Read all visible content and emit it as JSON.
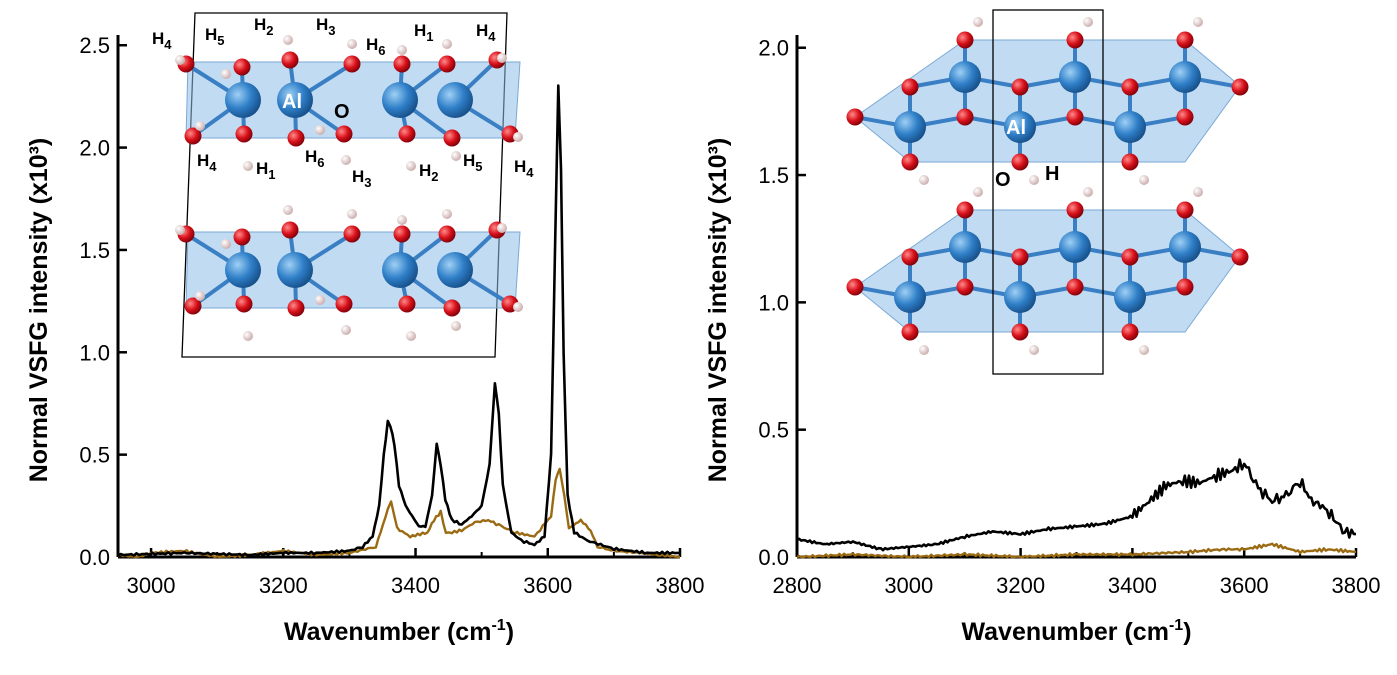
{
  "colors": {
    "series_black": "#000000",
    "series_gold": "#9a6b12",
    "atom_o": "#d8101a",
    "atom_al": "#2f7fc8",
    "atom_h": "#e8d6d6",
    "octahedron": "#8ec0e8"
  },
  "chart_data": [
    {
      "type": "line",
      "panel": "left",
      "xlabel": "Wavenumber (cm-1)",
      "ylabel": "Normal VSFG intensity (x10³)",
      "xlim": [
        2950,
        3800
      ],
      "ylim": [
        0,
        2.55
      ],
      "x_ticks": [
        "3000",
        "3200",
        "3400",
        "3600",
        "3800"
      ],
      "y_ticks": [
        "0.0",
        "0.5",
        "1.0",
        "1.5",
        "2.0",
        "2.5"
      ],
      "series": [
        {
          "name": "black",
          "points": [
            [
              2950,
              0.01
            ],
            [
              3050,
              0.02
            ],
            [
              3150,
              0.01
            ],
            [
              3200,
              0.02
            ],
            [
              3250,
              0.02
            ],
            [
              3300,
              0.03
            ],
            [
              3320,
              0.05
            ],
            [
              3335,
              0.1
            ],
            [
              3345,
              0.25
            ],
            [
              3352,
              0.5
            ],
            [
              3358,
              0.66
            ],
            [
              3362,
              0.64
            ],
            [
              3368,
              0.55
            ],
            [
              3375,
              0.35
            ],
            [
              3385,
              0.25
            ],
            [
              3395,
              0.2
            ],
            [
              3405,
              0.15
            ],
            [
              3415,
              0.15
            ],
            [
              3425,
              0.3
            ],
            [
              3432,
              0.55
            ],
            [
              3438,
              0.45
            ],
            [
              3445,
              0.28
            ],
            [
              3455,
              0.18
            ],
            [
              3470,
              0.16
            ],
            [
              3485,
              0.2
            ],
            [
              3500,
              0.25
            ],
            [
              3512,
              0.45
            ],
            [
              3520,
              0.85
            ],
            [
              3526,
              0.7
            ],
            [
              3532,
              0.35
            ],
            [
              3545,
              0.12
            ],
            [
              3560,
              0.08
            ],
            [
              3580,
              0.06
            ],
            [
              3595,
              0.1
            ],
            [
              3605,
              0.5
            ],
            [
              3611,
              1.5
            ],
            [
              3616,
              2.3
            ],
            [
              3620,
              1.9
            ],
            [
              3624,
              1.0
            ],
            [
              3630,
              0.3
            ],
            [
              3640,
              0.12
            ],
            [
              3660,
              0.08
            ],
            [
              3700,
              0.04
            ],
            [
              3750,
              0.02
            ],
            [
              3800,
              0.02
            ]
          ]
        },
        {
          "name": "gold",
          "points": [
            [
              2950,
              0.01
            ],
            [
              2980,
              0.0
            ],
            [
              3000,
              0.02
            ],
            [
              3050,
              0.03
            ],
            [
              3100,
              0.0
            ],
            [
              3150,
              0.01
            ],
            [
              3200,
              0.03
            ],
            [
              3250,
              0.01
            ],
            [
              3300,
              0.02
            ],
            [
              3340,
              0.05
            ],
            [
              3358,
              0.23
            ],
            [
              3363,
              0.27
            ],
            [
              3372,
              0.14
            ],
            [
              3392,
              0.1
            ],
            [
              3418,
              0.12
            ],
            [
              3428,
              0.18
            ],
            [
              3438,
              0.22
            ],
            [
              3446,
              0.12
            ],
            [
              3455,
              0.12
            ],
            [
              3470,
              0.13
            ],
            [
              3490,
              0.17
            ],
            [
              3510,
              0.18
            ],
            [
              3530,
              0.15
            ],
            [
              3550,
              0.12
            ],
            [
              3580,
              0.1
            ],
            [
              3605,
              0.2
            ],
            [
              3612,
              0.38
            ],
            [
              3618,
              0.43
            ],
            [
              3625,
              0.3
            ],
            [
              3632,
              0.14
            ],
            [
              3650,
              0.18
            ],
            [
              3665,
              0.13
            ],
            [
              3675,
              0.05
            ],
            [
              3700,
              0.03
            ],
            [
              3740,
              0.02
            ],
            [
              3770,
              0.01
            ],
            [
              3800,
              0.0
            ]
          ]
        }
      ]
    },
    {
      "type": "line",
      "panel": "right",
      "xlabel": "Wavenumber (cm-1)",
      "ylabel": "Normal VSFG intensity (x10³)",
      "xlim": [
        2800,
        3800
      ],
      "ylim": [
        0,
        2.05
      ],
      "x_ticks": [
        "2800",
        "3000",
        "3200",
        "3400",
        "3600",
        "3800"
      ],
      "y_ticks": [
        "0.0",
        "0.5",
        "1.0",
        "1.5",
        "2.0"
      ],
      "series": [
        {
          "name": "black",
          "points": [
            [
              2800,
              0.07
            ],
            [
              2850,
              0.05
            ],
            [
              2900,
              0.06
            ],
            [
              2950,
              0.03
            ],
            [
              3000,
              0.04
            ],
            [
              3050,
              0.05
            ],
            [
              3100,
              0.08
            ],
            [
              3150,
              0.1
            ],
            [
              3200,
              0.09
            ],
            [
              3250,
              0.11
            ],
            [
              3300,
              0.12
            ],
            [
              3350,
              0.13
            ],
            [
              3400,
              0.16
            ],
            [
              3430,
              0.22
            ],
            [
              3460,
              0.28
            ],
            [
              3490,
              0.3
            ],
            [
              3520,
              0.29
            ],
            [
              3550,
              0.32
            ],
            [
              3580,
              0.34
            ],
            [
              3600,
              0.37
            ],
            [
              3625,
              0.27
            ],
            [
              3650,
              0.22
            ],
            [
              3675,
              0.24
            ],
            [
              3700,
              0.3
            ],
            [
              3720,
              0.22
            ],
            [
              3740,
              0.2
            ],
            [
              3760,
              0.15
            ],
            [
              3780,
              0.1
            ],
            [
              3800,
              0.09
            ]
          ]
        },
        {
          "name": "gold",
          "points": [
            [
              2800,
              0.0
            ],
            [
              2900,
              0.01
            ],
            [
              3000,
              0.0
            ],
            [
              3100,
              0.01
            ],
            [
              3200,
              0.0
            ],
            [
              3300,
              0.01
            ],
            [
              3400,
              0.01
            ],
            [
              3500,
              0.02
            ],
            [
              3560,
              0.03
            ],
            [
              3600,
              0.03
            ],
            [
              3650,
              0.05
            ],
            [
              3700,
              0.02
            ],
            [
              3750,
              0.03
            ],
            [
              3800,
              0.02
            ]
          ]
        }
      ]
    }
  ],
  "insets": {
    "left": {
      "top_labels": [
        "H4",
        "H5",
        "H2",
        "H3",
        "H6",
        "H1",
        "H4"
      ],
      "bottom_labels": [
        "H4",
        "H1",
        "H6",
        "H3",
        "H2",
        "H5",
        "H4"
      ],
      "al_label": "Al",
      "o_label": "O"
    },
    "right": {
      "al_label": "Al",
      "o_label": "O",
      "h_label": "H"
    }
  }
}
